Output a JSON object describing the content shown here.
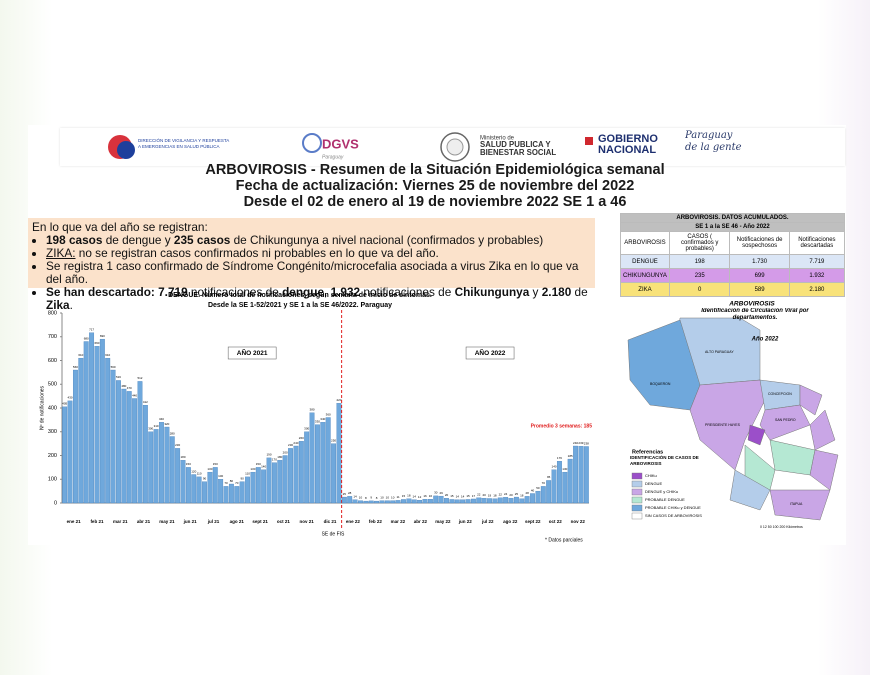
{
  "header": {
    "logo1": "DIRECCIÓN DE VIGILANCIA Y RESPUESTA A EMERGENCIAS EN SALUD PÚBLICA",
    "logo2": "DGVS",
    "logo2_sub": "Paraguay",
    "logo3_small": "Ministerio de",
    "logo3": "SALUD PÚBLICA Y BIENESTAR SOCIAL",
    "logo4": "GOBIERNO NACIONAL",
    "logo5": "Paraguay de la gente"
  },
  "title": [
    "ARBOVIROSIS - Resumen de la Situación Epidemiológica semanal",
    "Fecha de actualización: Viernes 25 de noviembre del 2022",
    "Desde el 02 de enero al 19 de noviembre 2022 SE 1 a 46"
  ],
  "summary": {
    "intro": "En lo que va del año se registran:",
    "bullets": [
      [
        {
          "text": "198 casos",
          "bold": true
        },
        {
          "text": " de dengue y "
        },
        {
          "text": "235 casos",
          "bold": true
        },
        {
          "text": " de Chikungunya a nivel nacional (confirmados y probables)"
        }
      ],
      [
        {
          "text": "ZIKA:",
          "underline": true
        },
        {
          "text": " no se registran casos confirmados ni probables en lo que va del año."
        }
      ],
      [
        {
          "text": "Se registra 1 caso confirmado de Síndrome Congénito/microcefalia asociada a virus Zika en lo que va del año."
        }
      ],
      [
        {
          "text": "Se han descartado: 7.719",
          "bold": true
        },
        {
          "text": " notificaciones de "
        },
        {
          "text": "dengue",
          "bold": true
        },
        {
          "text": ", "
        },
        {
          "text": "1.932",
          "bold": true
        },
        {
          "text": " notificaciones de "
        },
        {
          "text": "Chikungunya",
          "bold": true
        },
        {
          "text": " y "
        },
        {
          "text": "2.180",
          "bold": true
        },
        {
          "text": " de "
        },
        {
          "text": "Zika",
          "bold": true
        },
        {
          "text": "."
        }
      ]
    ]
  },
  "chart_data": {
    "type": "bar",
    "title": [
      "DENGUE. Número total de notificaciones, según semana de inicio de síntomas.",
      "Desde la SE 1-52/2021 y SE 1 a la SE 46/2022. Paraguay"
    ],
    "ylabel": "Nº de notificaciones",
    "xlabel": "SE de FIS",
    "ylim": [
      0,
      800
    ],
    "yticks": [
      0,
      100,
      200,
      300,
      400,
      500,
      600,
      700,
      800
    ],
    "divider_color": "#e02020",
    "series": [
      {
        "name": "AÑO 2021",
        "color": "#6fa8dc",
        "values": [
          405,
          430,
          560,
          610,
          680,
          717,
          660,
          690,
          610,
          560,
          516,
          480,
          470,
          440,
          512,
          412,
          300,
          310,
          340,
          320,
          280,
          230,
          180,
          150,
          120,
          110,
          90,
          130,
          150,
          100,
          70,
          80,
          70,
          90,
          110,
          130,
          150,
          140,
          190,
          170,
          180,
          200,
          230,
          240,
          260,
          300,
          380,
          330,
          340,
          360,
          250,
          420
        ],
        "months": [
          "ene 21",
          "feb 21",
          "mar 21",
          "abr 21",
          "may 21",
          "jun 21",
          "jul 21",
          "ago 21",
          "sept 21",
          "oct 21",
          "nov 21",
          "dic 21"
        ]
      },
      {
        "name": "AÑO 2022",
        "color": "#6fa8dc",
        "values": [
          25,
          28,
          14,
          10,
          8,
          9,
          8,
          10,
          10,
          10,
          11,
          15,
          18,
          14,
          12,
          16,
          16,
          30,
          29,
          20,
          15,
          14,
          14,
          15,
          17,
          22,
          20,
          19,
          18,
          22,
          24,
          20,
          25,
          18,
          28,
          40,
          50,
          70,
          95,
          140,
          176,
          130,
          185,
          240,
          239,
          238
        ],
        "months": [
          "ene 22",
          "feb 22",
          "mar 22",
          "abr 22",
          "may 22",
          "jun 22",
          "jul 22",
          "ago 22",
          "sept 22",
          "oct 22",
          "nov 22"
        ]
      }
    ],
    "annotation": "Promedio 3 semanas: 185",
    "footnote": "* Datos parciales"
  },
  "table": {
    "title": "ARBOVIROSIS. DATOS ACUMULADOS.",
    "subtitle": "SE 1 a la SE 46 - Año 2022",
    "columns": [
      "ARBOVIROSIS",
      "CASOS ( confirmados y probables)",
      "Notificaciones de sospechosos",
      "Notificaciones descartadas"
    ],
    "rows": [
      [
        "DENGUE",
        "198",
        "1.730",
        "7.719"
      ],
      [
        "CHIKUNGUNYA",
        "235",
        "699",
        "1.932"
      ],
      [
        "ZIKA",
        "0",
        "589",
        "2.180"
      ]
    ]
  },
  "map": {
    "title": "ARBOVIROSIS",
    "subtitle": "Identificación de Circulación Viral por departamentos.",
    "year": "Año 2022",
    "legend_title": "Referencias",
    "legend_subtitle": "IDENTIFICACIÓN DE CASOS DE ARBOVIROSIS",
    "legend": [
      {
        "label": "CHIKu",
        "color": "#9b4fc9"
      },
      {
        "label": "DENGUE",
        "color": "#b4cdea"
      },
      {
        "label": "DENGUE y CHIKu",
        "color": "#c9a6e6"
      },
      {
        "label": "PROBABLE DENGUE",
        "color": "#b5e8d3"
      },
      {
        "label": "PROBABLE CHIKu y DENGUE",
        "color": "#6fa8dc"
      },
      {
        "label": "SIN CASOS DE ARBOVIROSIS",
        "color": "#ffffff"
      }
    ],
    "departments": [
      "ALTO PARAGUAY",
      "BOQUERON",
      "PRESIDENTE HAYES",
      "CONCEPCION",
      "SAN PEDRO",
      "ITAPUA"
    ],
    "scale": "0 12 50 100 200 Kilómetros"
  }
}
